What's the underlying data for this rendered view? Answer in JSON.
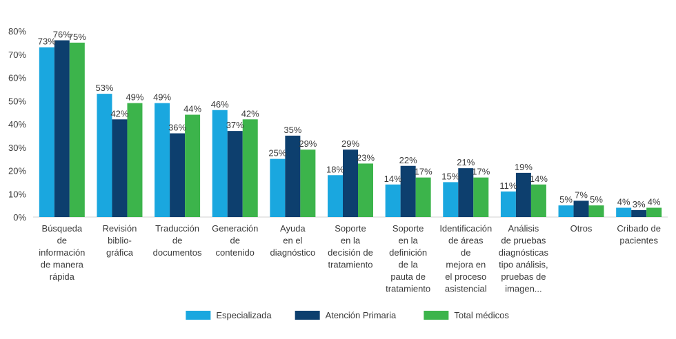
{
  "chart_data": {
    "type": "bar",
    "title": "",
    "xlabel": "",
    "ylabel": "",
    "ylim": [
      0,
      80
    ],
    "yticks": [
      "0%",
      "10%",
      "20%",
      "30%",
      "40%",
      "50%",
      "60%",
      "70%",
      "80%"
    ],
    "grid": false,
    "legend_position": "bottom",
    "categories": [
      [
        "Búsqueda",
        "de",
        "información",
        "de manera",
        "rápida"
      ],
      [
        "Revisión",
        "biblio-",
        "gráfica"
      ],
      [
        "Traducción",
        "de",
        "documentos"
      ],
      [
        "Generación",
        "de",
        "contenido"
      ],
      [
        "Ayuda",
        "en el",
        "diagnóstico"
      ],
      [
        "Soporte",
        "en la",
        "decisión de",
        "tratamiento"
      ],
      [
        "Soporte",
        "en la",
        "definición",
        "de la",
        "pauta de",
        "tratamiento"
      ],
      [
        "Identificación",
        "de áreas",
        "de",
        "mejora en",
        "el proceso",
        "asistencial"
      ],
      [
        "Análisis",
        "de pruebas",
        "diagnósticas",
        "tipo análisis,",
        "pruebas de",
        "imagen..."
      ],
      [
        "Otros"
      ],
      [
        "Cribado de",
        "pacientes"
      ]
    ],
    "series": [
      {
        "name": "Especializada",
        "color": "#1aa7df",
        "values": [
          73,
          53,
          49,
          46,
          25,
          18,
          14,
          15,
          11,
          5,
          4
        ],
        "labels": [
          "73%",
          "53%",
          "49%",
          "46%",
          "25%",
          "18%",
          "14%",
          "15%",
          "11%",
          "5%",
          "4%"
        ]
      },
      {
        "name": "Atención Primaria",
        "color": "#0d3f6e",
        "values": [
          76,
          42,
          36,
          37,
          35,
          29,
          22,
          21,
          19,
          7,
          3
        ],
        "labels": [
          "76%",
          "42%",
          "36%",
          "37%",
          "35%",
          "29%",
          "22%",
          "21%",
          "19%",
          "7%",
          "3%"
        ]
      },
      {
        "name": "Total médicos",
        "color": "#3cb44b",
        "values": [
          75,
          49,
          44,
          42,
          29,
          23,
          17,
          17,
          14,
          5,
          4
        ],
        "labels": [
          "75%",
          "49%",
          "44%",
          "42%",
          "29%",
          "23%",
          "17%",
          "17%",
          "14%",
          "5%",
          "4%"
        ]
      }
    ]
  }
}
